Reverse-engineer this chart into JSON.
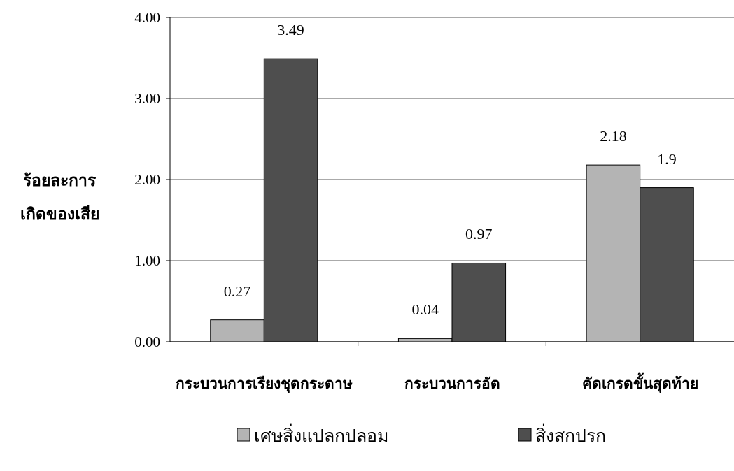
{
  "chart_data": {
    "type": "bar",
    "ylabel": "ร้อยละการ เกิดของเสีย",
    "categories": [
      "กระบวนการเรียงชุดกระดาษ",
      "กระบวนการอัด",
      "คัดเกรดขั้นสุดท้าย"
    ],
    "series": [
      {
        "name": "เศษสิ่งแปลกปลอม",
        "color": "#b4b4b4",
        "values": [
          0.27,
          0.04,
          2.18
        ]
      },
      {
        "name": "สิ่งสกปรก",
        "color": "#4e4e4e",
        "values": [
          3.49,
          0.97,
          1.9
        ]
      }
    ],
    "ylim": [
      0,
      4
    ],
    "yticks": [
      {
        "value": 0,
        "label": "0.00"
      },
      {
        "value": 1,
        "label": "1.00"
      },
      {
        "value": 2,
        "label": "2.00"
      },
      {
        "value": 3,
        "label": "3.00"
      },
      {
        "value": 4,
        "label": "4.00"
      }
    ],
    "grid": "y",
    "legend": "bottom",
    "data_labels": true
  }
}
